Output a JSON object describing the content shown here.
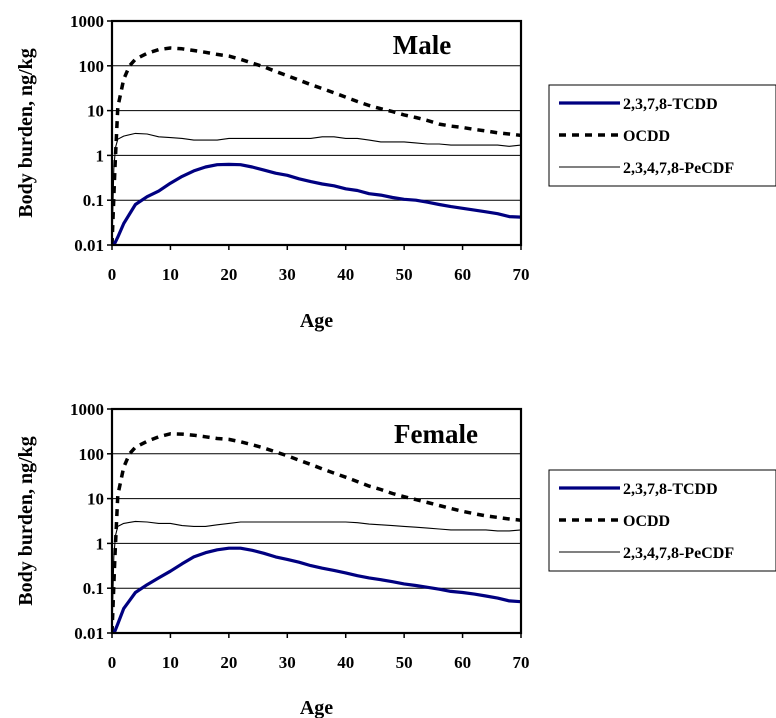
{
  "chart_data": [
    {
      "type": "line",
      "title": "Male",
      "xlabel": "Age",
      "ylabel": "Body burden, ng/kg",
      "xlim": [
        0,
        70
      ],
      "ylim": [
        0.01,
        1000
      ],
      "yscale": "log",
      "xticks": [
        "0",
        "10",
        "20",
        "30",
        "40",
        "50",
        "60",
        "70"
      ],
      "yticks": [
        "0.01",
        "0.1",
        "1",
        "10",
        "100",
        "1000"
      ],
      "grid": "horizontal",
      "legend_position": "right",
      "series": [
        {
          "name": "2,3,7,8-TCDD",
          "color": "#000080",
          "style": "solid-thick",
          "x": [
            0,
            0.5,
            1,
            2,
            4,
            6,
            8,
            10,
            12,
            14,
            16,
            18,
            20,
            22,
            24,
            26,
            28,
            30,
            32,
            34,
            36,
            38,
            40,
            42,
            44,
            46,
            48,
            50,
            52,
            54,
            56,
            58,
            60,
            62,
            64,
            66,
            68,
            70
          ],
          "y": [
            0.01,
            0.011,
            0.015,
            0.03,
            0.08,
            0.12,
            0.16,
            0.24,
            0.34,
            0.45,
            0.55,
            0.62,
            0.63,
            0.62,
            0.55,
            0.47,
            0.4,
            0.36,
            0.3,
            0.26,
            0.23,
            0.21,
            0.18,
            0.165,
            0.14,
            0.13,
            0.115,
            0.105,
            0.1,
            0.09,
            0.08,
            0.072,
            0.066,
            0.06,
            0.055,
            0.05,
            0.043,
            0.042
          ]
        },
        {
          "name": "OCDD",
          "color": "#000000",
          "style": "dashed",
          "x": [
            0,
            0.5,
            1,
            2,
            3,
            4,
            6,
            8,
            10,
            12,
            14,
            16,
            18,
            20,
            22,
            24,
            26,
            28,
            30,
            32,
            34,
            36,
            38,
            40,
            42,
            44,
            46,
            48,
            50,
            52,
            54,
            56,
            58,
            60,
            62,
            64,
            66,
            68,
            70
          ],
          "y": [
            0.01,
            0.5,
            12,
            50,
            100,
            140,
            190,
            230,
            250,
            240,
            220,
            200,
            180,
            165,
            140,
            115,
            95,
            75,
            60,
            48,
            38,
            31,
            25,
            20,
            16,
            13,
            11,
            9.5,
            8,
            7,
            6,
            5,
            4.5,
            4.2,
            3.8,
            3.5,
            3.2,
            3.0,
            2.8
          ]
        },
        {
          "name": "2,3,4,7,8-PeCDF",
          "color": "#000000",
          "style": "solid-thin",
          "x": [
            0,
            0.3,
            0.6,
            1,
            2,
            4,
            6,
            8,
            10,
            12,
            14,
            16,
            18,
            20,
            22,
            24,
            26,
            28,
            30,
            32,
            34,
            36,
            38,
            40,
            42,
            44,
            46,
            48,
            50,
            52,
            54,
            56,
            58,
            60,
            62,
            64,
            66,
            68,
            70
          ],
          "y": [
            0.01,
            0.5,
            1.5,
            2.3,
            2.7,
            3.1,
            3.0,
            2.6,
            2.5,
            2.4,
            2.2,
            2.2,
            2.2,
            2.4,
            2.4,
            2.4,
            2.4,
            2.4,
            2.4,
            2.4,
            2.4,
            2.6,
            2.6,
            2.4,
            2.4,
            2.2,
            2.0,
            2.0,
            2.0,
            1.9,
            1.8,
            1.8,
            1.7,
            1.7,
            1.7,
            1.7,
            1.7,
            1.6,
            1.7
          ]
        }
      ]
    },
    {
      "type": "line",
      "title": "Female",
      "xlabel": "Age",
      "ylabel": "Body burden, ng/kg",
      "xlim": [
        0,
        70
      ],
      "ylim": [
        0.01,
        1000
      ],
      "yscale": "log",
      "xticks": [
        "0",
        "10",
        "20",
        "30",
        "40",
        "50",
        "60",
        "70"
      ],
      "yticks": [
        "0.01",
        "0.1",
        "1",
        "10",
        "100",
        "1000"
      ],
      "grid": "horizontal",
      "legend_position": "right",
      "series": [
        {
          "name": "2,3,7,8-TCDD",
          "color": "#000080",
          "style": "solid-thick",
          "x": [
            0,
            0.5,
            1,
            2,
            4,
            6,
            8,
            10,
            12,
            14,
            16,
            18,
            20,
            22,
            24,
            26,
            28,
            30,
            32,
            34,
            36,
            38,
            40,
            42,
            44,
            46,
            48,
            50,
            52,
            54,
            56,
            58,
            60,
            62,
            64,
            66,
            68,
            70
          ],
          "y": [
            0.01,
            0.011,
            0.016,
            0.035,
            0.08,
            0.12,
            0.17,
            0.24,
            0.35,
            0.5,
            0.62,
            0.72,
            0.78,
            0.78,
            0.7,
            0.6,
            0.5,
            0.44,
            0.38,
            0.32,
            0.28,
            0.25,
            0.22,
            0.19,
            0.17,
            0.155,
            0.14,
            0.125,
            0.115,
            0.105,
            0.095,
            0.085,
            0.08,
            0.074,
            0.067,
            0.06,
            0.052,
            0.05
          ]
        },
        {
          "name": "OCDD",
          "color": "#000000",
          "style": "dashed",
          "x": [
            0,
            0.5,
            1,
            2,
            3,
            4,
            6,
            8,
            10,
            12,
            14,
            16,
            18,
            20,
            22,
            24,
            26,
            28,
            30,
            32,
            34,
            36,
            38,
            40,
            42,
            44,
            46,
            48,
            50,
            52,
            54,
            56,
            58,
            60,
            62,
            64,
            66,
            68,
            70
          ],
          "y": [
            0.01,
            0.5,
            12,
            50,
            100,
            140,
            190,
            240,
            280,
            275,
            260,
            240,
            220,
            210,
            185,
            160,
            135,
            110,
            90,
            72,
            58,
            46,
            37,
            30,
            24,
            19,
            16,
            13,
            11,
            9.5,
            8.2,
            7,
            6,
            5.2,
            4.6,
            4.1,
            3.8,
            3.5,
            3.3
          ]
        },
        {
          "name": "2,3,4,7,8-PeCDF",
          "color": "#000000",
          "style": "solid-thin",
          "x": [
            0,
            0.3,
            0.6,
            1,
            2,
            4,
            6,
            8,
            10,
            12,
            14,
            16,
            18,
            20,
            22,
            24,
            26,
            28,
            30,
            32,
            34,
            36,
            38,
            40,
            42,
            44,
            46,
            48,
            50,
            52,
            54,
            56,
            58,
            60,
            62,
            64,
            66,
            68,
            70
          ],
          "y": [
            0.01,
            0.5,
            1.5,
            2.4,
            2.8,
            3.1,
            3.0,
            2.8,
            2.8,
            2.5,
            2.4,
            2.4,
            2.6,
            2.8,
            3.0,
            3.0,
            3.0,
            3.0,
            3.0,
            3.0,
            3.0,
            3.0,
            3.0,
            3.0,
            2.9,
            2.7,
            2.6,
            2.5,
            2.4,
            2.3,
            2.2,
            2.1,
            2.0,
            2.0,
            2.0,
            2.0,
            1.9,
            1.9,
            2.0
          ]
        }
      ]
    }
  ]
}
